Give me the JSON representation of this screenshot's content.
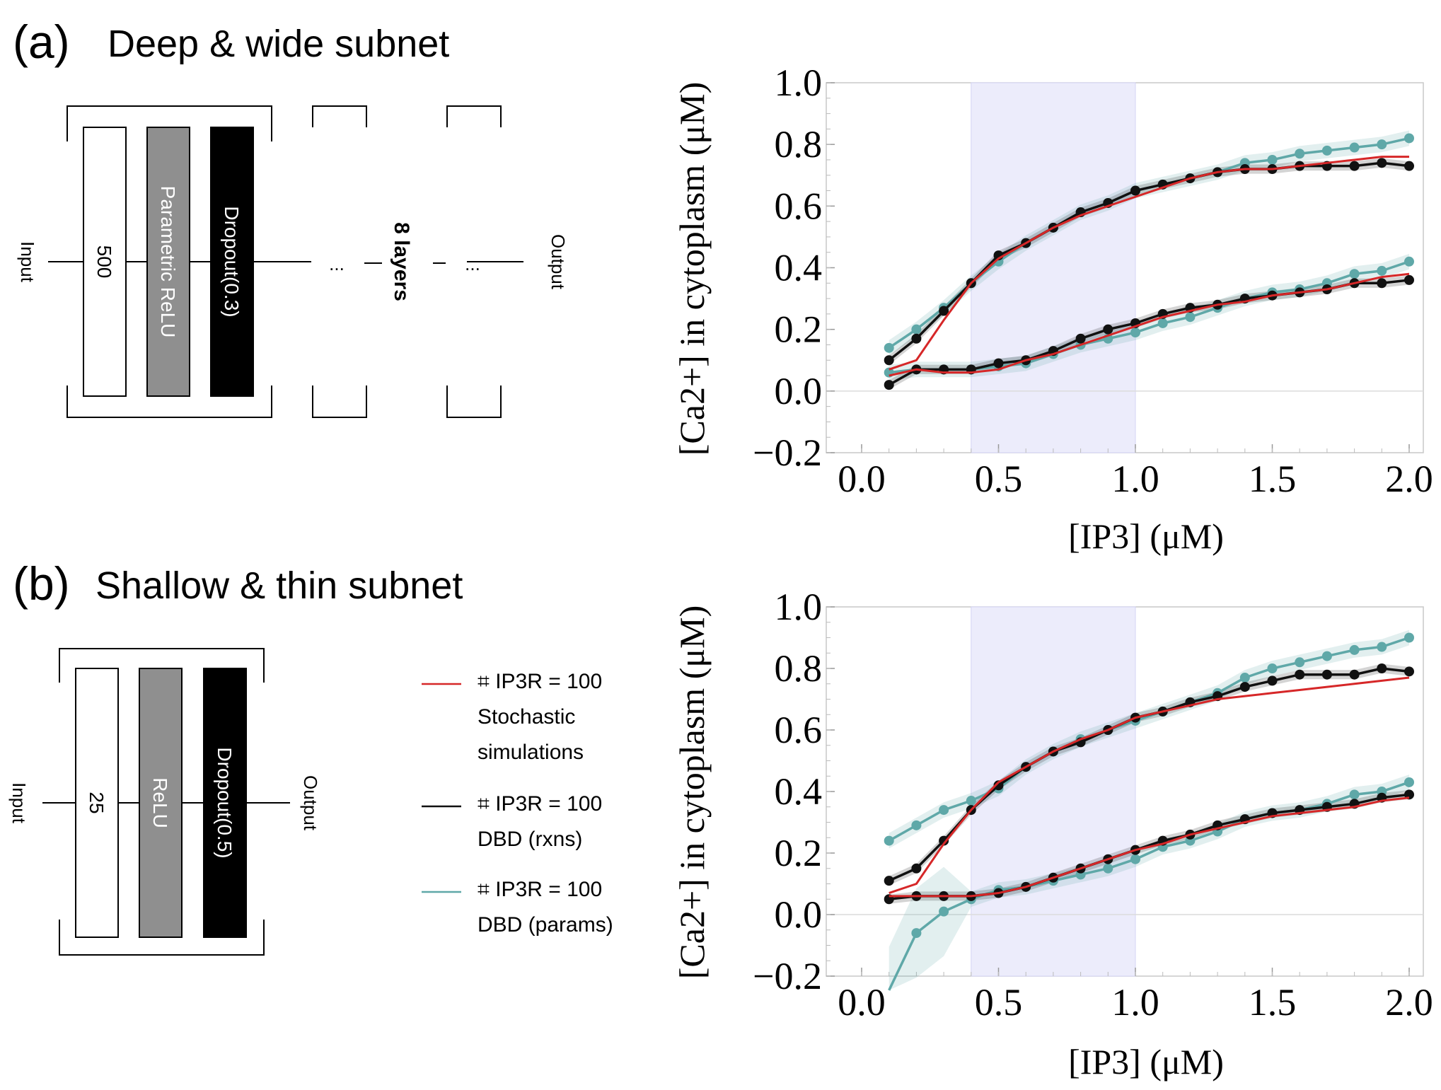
{
  "panels": {
    "a": {
      "label": "(a)",
      "title": "Deep & wide subnet",
      "input": "Input",
      "output": "Output",
      "dense_units": "500",
      "activation": "Parametric ReLU",
      "dropout": "Dropout(0.3)",
      "ellipsis": "...",
      "repeat": "8 layers"
    },
    "b": {
      "label": "(b)",
      "title": "Shallow & thin subnet",
      "input": "Input",
      "output": "Output",
      "dense_units": "25",
      "activation": "ReLU",
      "dropout": "Dropout(0.5)"
    }
  },
  "legend": [
    {
      "line1": "⌗ IP3R = 100",
      "line2": "Stochastic",
      "line3": "simulations",
      "color": "#d62728"
    },
    {
      "line1": "⌗ IP3R = 100",
      "line2": "DBD (rxns)",
      "line3": "",
      "color": "#111111"
    },
    {
      "line1": "⌗ IP3R = 100",
      "line2": "DBD (params)",
      "line3": "",
      "color": "#5fa8a8"
    }
  ],
  "colors": {
    "stochastic": "#d62728",
    "rxns": "#111111",
    "params": "#5fa8a8",
    "shade": "#ececfb"
  },
  "chart_data": [
    {
      "type": "line",
      "panel": "a",
      "xlabel": "[IP3] (μM)",
      "ylabel": "[Ca2+] in cytoplasm (μM)",
      "xlim": [
        0.0,
        2.0
      ],
      "ylim": [
        -0.2,
        1.0
      ],
      "xticks": [
        "0.0",
        "0.5",
        "1.0",
        "1.5",
        "2.0"
      ],
      "yticks": [
        "−0.2",
        "0.0",
        "0.2",
        "0.4",
        "0.6",
        "0.8",
        "1.0"
      ],
      "shaded_x_range": [
        0.4,
        1.0
      ],
      "x": [
        0.1,
        0.2,
        0.3,
        0.4,
        0.5,
        0.6,
        0.7,
        0.8,
        0.9,
        1.0,
        1.1,
        1.2,
        1.3,
        1.4,
        1.5,
        1.6,
        1.7,
        1.8,
        1.9,
        2.0
      ],
      "series": [
        {
          "key": "stochastic",
          "group": "upper",
          "values": [
            0.07,
            0.1,
            0.23,
            0.35,
            0.43,
            0.48,
            0.53,
            0.57,
            0.6,
            0.63,
            0.66,
            0.69,
            0.71,
            0.72,
            0.72,
            0.73,
            0.74,
            0.75,
            0.76,
            0.76
          ]
        },
        {
          "key": "rxns",
          "group": "upper",
          "values": [
            0.1,
            0.17,
            0.26,
            0.35,
            0.44,
            0.48,
            0.53,
            0.58,
            0.61,
            0.65,
            0.67,
            0.69,
            0.71,
            0.72,
            0.72,
            0.73,
            0.73,
            0.73,
            0.74,
            0.73
          ]
        },
        {
          "key": "params",
          "group": "upper",
          "values": [
            0.14,
            0.2,
            0.27,
            0.35,
            0.42,
            0.48,
            0.53,
            0.58,
            0.61,
            0.65,
            0.67,
            0.69,
            0.71,
            0.74,
            0.75,
            0.77,
            0.78,
            0.79,
            0.8,
            0.82
          ]
        },
        {
          "key": "stochastic",
          "group": "lower",
          "values": [
            0.05,
            0.07,
            0.06,
            0.06,
            0.07,
            0.1,
            0.12,
            0.15,
            0.18,
            0.21,
            0.24,
            0.26,
            0.28,
            0.29,
            0.31,
            0.32,
            0.33,
            0.35,
            0.37,
            0.38
          ]
        },
        {
          "key": "rxns",
          "group": "lower",
          "values": [
            0.02,
            0.07,
            0.07,
            0.07,
            0.09,
            0.1,
            0.13,
            0.17,
            0.2,
            0.22,
            0.25,
            0.27,
            0.28,
            0.3,
            0.31,
            0.32,
            0.33,
            0.35,
            0.35,
            0.36
          ]
        },
        {
          "key": "params",
          "group": "lower",
          "values": [
            0.06,
            0.07,
            0.07,
            0.07,
            0.08,
            0.09,
            0.12,
            0.15,
            0.17,
            0.19,
            0.22,
            0.24,
            0.27,
            0.3,
            0.32,
            0.33,
            0.35,
            0.38,
            0.39,
            0.42
          ]
        }
      ]
    },
    {
      "type": "line",
      "panel": "b",
      "xlabel": "[IP3] (μM)",
      "ylabel": "[Ca2+] in cytoplasm (μM)",
      "xlim": [
        0.0,
        2.0
      ],
      "ylim": [
        -0.2,
        1.0
      ],
      "xticks": [
        "0.0",
        "0.5",
        "1.0",
        "1.5",
        "2.0"
      ],
      "yticks": [
        "−0.2",
        "0.0",
        "0.2",
        "0.4",
        "0.6",
        "0.8",
        "1.0"
      ],
      "shaded_x_range": [
        0.4,
        1.0
      ],
      "x": [
        0.1,
        0.2,
        0.3,
        0.4,
        0.5,
        0.6,
        0.7,
        0.8,
        0.9,
        1.0,
        1.1,
        1.2,
        1.3,
        1.4,
        1.5,
        1.6,
        1.7,
        1.8,
        1.9,
        2.0
      ],
      "series": [
        {
          "key": "stochastic",
          "group": "upper",
          "values": [
            0.07,
            0.1,
            0.23,
            0.34,
            0.43,
            0.48,
            0.53,
            0.57,
            0.6,
            0.64,
            0.66,
            0.68,
            0.7,
            0.71,
            0.72,
            0.73,
            0.74,
            0.75,
            0.76,
            0.77
          ]
        },
        {
          "key": "rxns",
          "group": "upper",
          "values": [
            0.11,
            0.15,
            0.24,
            0.34,
            0.42,
            0.48,
            0.53,
            0.56,
            0.6,
            0.64,
            0.66,
            0.69,
            0.71,
            0.74,
            0.76,
            0.78,
            0.78,
            0.78,
            0.8,
            0.79
          ]
        },
        {
          "key": "params",
          "group": "upper",
          "values": [
            0.24,
            0.29,
            0.34,
            0.37,
            0.41,
            0.48,
            0.53,
            0.57,
            0.6,
            0.63,
            0.66,
            0.69,
            0.72,
            0.77,
            0.8,
            0.82,
            0.84,
            0.86,
            0.87,
            0.9
          ]
        },
        {
          "key": "stochastic",
          "group": "lower",
          "values": [
            0.06,
            0.06,
            0.06,
            0.06,
            0.07,
            0.09,
            0.12,
            0.15,
            0.18,
            0.21,
            0.23,
            0.26,
            0.28,
            0.3,
            0.32,
            0.33,
            0.34,
            0.35,
            0.37,
            0.38
          ]
        },
        {
          "key": "rxns",
          "group": "lower",
          "values": [
            0.05,
            0.06,
            0.06,
            0.06,
            0.07,
            0.09,
            0.12,
            0.15,
            0.18,
            0.21,
            0.24,
            0.26,
            0.29,
            0.31,
            0.33,
            0.34,
            0.35,
            0.36,
            0.38,
            0.39
          ]
        },
        {
          "key": "params",
          "group": "lower",
          "values": [
            -0.25,
            -0.06,
            0.01,
            0.05,
            0.08,
            0.09,
            0.11,
            0.13,
            0.15,
            0.18,
            0.22,
            0.24,
            0.27,
            0.31,
            0.33,
            0.34,
            0.36,
            0.39,
            0.4,
            0.43
          ]
        }
      ]
    }
  ]
}
